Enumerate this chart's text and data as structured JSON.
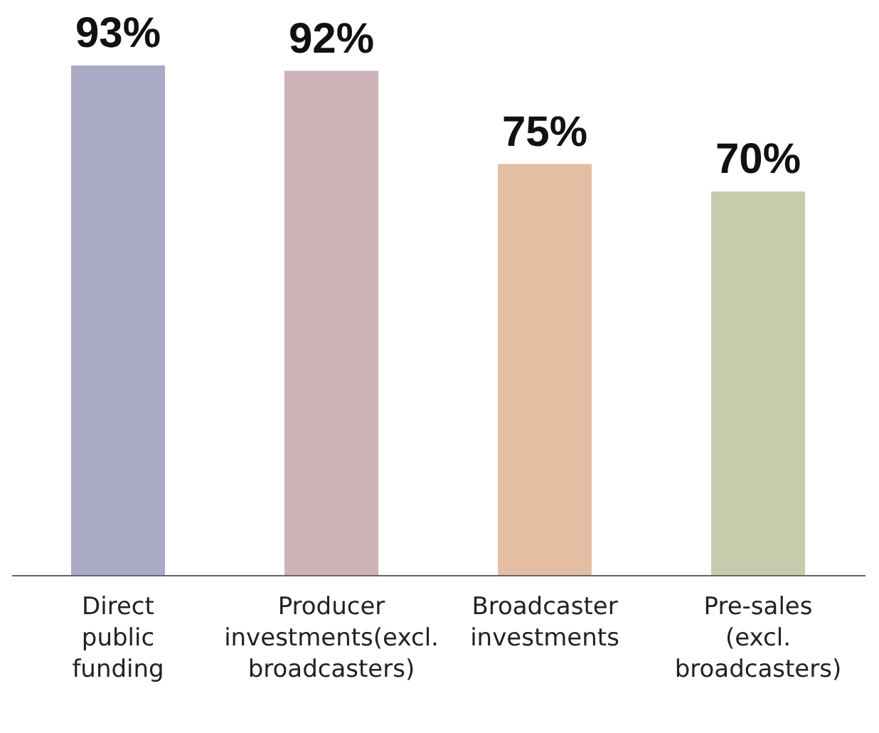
{
  "chart_data": {
    "type": "bar",
    "categories": [
      "Direct public funding",
      "Producer investments(excl. broadcasters)",
      "Broadcaster investments",
      "Pre-sales (excl. broadcasters)"
    ],
    "values": [
      93,
      92,
      75,
      70
    ],
    "colors": [
      "#aaaac6",
      "#cfb1b8",
      "#e4bea2",
      "#c8cbab"
    ],
    "value_labels": [
      "93%",
      "92%",
      "75%",
      "70%"
    ],
    "grid": false,
    "legend": false
  }
}
